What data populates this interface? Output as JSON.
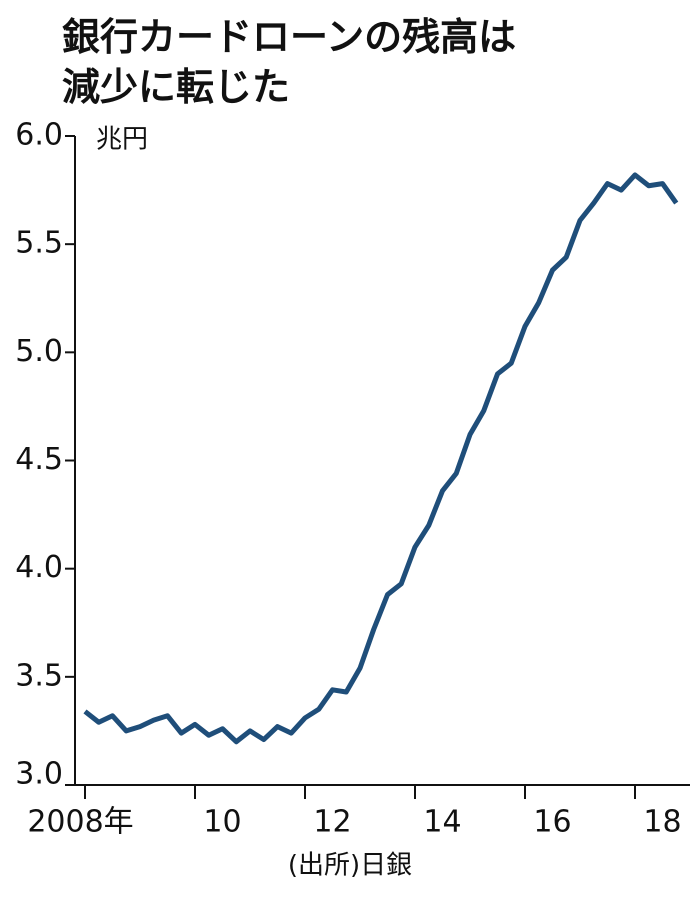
{
  "chart_data": {
    "type": "line",
    "title": "銀行カードローンの残高は",
    "subtitle": "減少に転じた",
    "y_unit": "兆円",
    "source": "(出所)日銀",
    "x": [
      2008,
      2008.25,
      2008.5,
      2008.75,
      2009,
      2009.25,
      2009.5,
      2009.75,
      2010,
      2010.25,
      2010.5,
      2010.75,
      2011,
      2011.25,
      2011.5,
      2011.75,
      2012,
      2012.25,
      2012.5,
      2012.75,
      2013,
      2013.25,
      2013.5,
      2013.75,
      2014,
      2014.25,
      2014.5,
      2014.75,
      2015,
      2015.25,
      2015.5,
      2015.75,
      2016,
      2016.25,
      2016.5,
      2016.75,
      2017,
      2017.25,
      2017.5,
      2017.75,
      2018,
      2018.25,
      2018.5,
      2018.75
    ],
    "series": [
      {
        "color": "#1f4e7a",
        "values": [
          3.34,
          3.29,
          3.32,
          3.25,
          3.27,
          3.3,
          3.32,
          3.24,
          3.28,
          3.23,
          3.26,
          3.2,
          3.25,
          3.21,
          3.27,
          3.24,
          3.31,
          3.35,
          3.44,
          3.43,
          3.54,
          3.72,
          3.88,
          3.93,
          4.1,
          4.2,
          4.36,
          4.44,
          4.62,
          4.73,
          4.9,
          4.95,
          5.12,
          5.23,
          5.38,
          5.44,
          5.61,
          5.69,
          5.78,
          5.75,
          5.82,
          5.77,
          5.78,
          5.69
        ]
      }
    ],
    "xlim": [
      2008,
      2019
    ],
    "ylim": [
      3.0,
      6.0
    ],
    "xticks": [
      {
        "value": 2008,
        "label": "2008年"
      },
      {
        "value": 2010,
        "label": "10"
      },
      {
        "value": 2012,
        "label": "12"
      },
      {
        "value": 2014,
        "label": "14"
      },
      {
        "value": 2016,
        "label": "16"
      },
      {
        "value": 2018,
        "label": "18"
      }
    ],
    "yticks": [
      {
        "value": 3.0,
        "label": "3.0"
      },
      {
        "value": 3.5,
        "label": "3.5"
      },
      {
        "value": 4.0,
        "label": "4.0"
      },
      {
        "value": 4.5,
        "label": "4.5"
      },
      {
        "value": 5.0,
        "label": "5.0"
      },
      {
        "value": 5.5,
        "label": "5.5"
      },
      {
        "value": 6.0,
        "label": "6.0"
      }
    ]
  }
}
